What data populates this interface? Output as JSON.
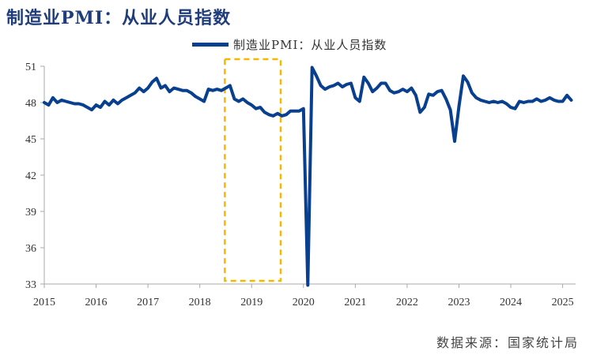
{
  "title": "制造业PMI：从业人员指数",
  "source": "数据来源：国家统计局",
  "colors": {
    "line": "#083f8f",
    "highlight": "#f2b900",
    "axis": "#a8a8a8"
  },
  "chart_data": {
    "type": "line",
    "title": "制造业PMI：从业人员指数",
    "x_axis": {
      "type": "date",
      "range": [
        "2015-01",
        "2025-03"
      ],
      "ticks": [
        "2015",
        "2016",
        "2017",
        "2018",
        "2019",
        "2020",
        "2021",
        "2022",
        "2023",
        "2024",
        "2025"
      ]
    },
    "y_axis": {
      "ylim": [
        33,
        51
      ],
      "ticks": [
        33,
        36,
        39,
        42,
        45,
        48,
        51
      ]
    },
    "grid": false,
    "legend_position": "top-center",
    "highlight_range": [
      "2018-09",
      "2019-07"
    ],
    "series": [
      {
        "name": "制造业PMI：从业人员指数",
        "points": [
          [
            "2015-01",
            48.0
          ],
          [
            "2015-02",
            47.8
          ],
          [
            "2015-03",
            48.4
          ],
          [
            "2015-04",
            48.0
          ],
          [
            "2015-05",
            48.2
          ],
          [
            "2015-06",
            48.1
          ],
          [
            "2015-07",
            48.0
          ],
          [
            "2015-08",
            47.9
          ],
          [
            "2015-09",
            47.9
          ],
          [
            "2015-10",
            47.8
          ],
          [
            "2015-11",
            47.6
          ],
          [
            "2015-12",
            47.4
          ],
          [
            "2016-01",
            47.8
          ],
          [
            "2016-02",
            47.6
          ],
          [
            "2016-03",
            48.1
          ],
          [
            "2016-04",
            47.8
          ],
          [
            "2016-05",
            48.2
          ],
          [
            "2016-06",
            47.9
          ],
          [
            "2016-07",
            48.2
          ],
          [
            "2016-08",
            48.4
          ],
          [
            "2016-09",
            48.6
          ],
          [
            "2016-10",
            48.8
          ],
          [
            "2016-11",
            49.2
          ],
          [
            "2016-12",
            48.9
          ],
          [
            "2017-01",
            49.2
          ],
          [
            "2017-02",
            49.7
          ],
          [
            "2017-03",
            50.0
          ],
          [
            "2017-04",
            49.2
          ],
          [
            "2017-05",
            49.4
          ],
          [
            "2017-06",
            48.9
          ],
          [
            "2017-07",
            49.2
          ],
          [
            "2017-08",
            49.1
          ],
          [
            "2017-09",
            49.0
          ],
          [
            "2017-10",
            49.0
          ],
          [
            "2017-11",
            48.8
          ],
          [
            "2017-12",
            48.5
          ],
          [
            "2018-01",
            48.3
          ],
          [
            "2018-02",
            48.1
          ],
          [
            "2018-03",
            49.1
          ],
          [
            "2018-04",
            49.0
          ],
          [
            "2018-05",
            49.1
          ],
          [
            "2018-06",
            49.0
          ],
          [
            "2018-07",
            49.2
          ],
          [
            "2018-08",
            49.4
          ],
          [
            "2018-09",
            48.3
          ],
          [
            "2018-10",
            48.1
          ],
          [
            "2018-11",
            48.3
          ],
          [
            "2018-12",
            48.0
          ],
          [
            "2019-01",
            47.8
          ],
          [
            "2019-02",
            47.5
          ],
          [
            "2019-03",
            47.6
          ],
          [
            "2019-04",
            47.2
          ],
          [
            "2019-05",
            47.0
          ],
          [
            "2019-06",
            46.9
          ],
          [
            "2019-07",
            47.1
          ],
          [
            "2019-08",
            46.9
          ],
          [
            "2019-09",
            47.0
          ],
          [
            "2019-10",
            47.3
          ],
          [
            "2019-11",
            47.3
          ],
          [
            "2019-12",
            47.3
          ],
          [
            "2020-01",
            47.5
          ],
          [
            "2020-02",
            32.9
          ],
          [
            "2020-03",
            50.9
          ],
          [
            "2020-04",
            50.2
          ],
          [
            "2020-05",
            49.4
          ],
          [
            "2020-06",
            49.1
          ],
          [
            "2020-07",
            49.3
          ],
          [
            "2020-08",
            49.4
          ],
          [
            "2020-09",
            49.6
          ],
          [
            "2020-10",
            49.3
          ],
          [
            "2020-11",
            49.5
          ],
          [
            "2020-12",
            49.6
          ],
          [
            "2021-01",
            48.4
          ],
          [
            "2021-02",
            48.1
          ],
          [
            "2021-03",
            50.1
          ],
          [
            "2021-04",
            49.6
          ],
          [
            "2021-05",
            48.9
          ],
          [
            "2021-06",
            49.2
          ],
          [
            "2021-07",
            49.6
          ],
          [
            "2021-08",
            49.6
          ],
          [
            "2021-09",
            49.0
          ],
          [
            "2021-10",
            48.8
          ],
          [
            "2021-11",
            48.9
          ],
          [
            "2021-12",
            49.1
          ],
          [
            "2022-01",
            48.9
          ],
          [
            "2022-02",
            49.2
          ],
          [
            "2022-03",
            48.6
          ],
          [
            "2022-04",
            47.2
          ],
          [
            "2022-05",
            47.6
          ],
          [
            "2022-06",
            48.7
          ],
          [
            "2022-07",
            48.6
          ],
          [
            "2022-08",
            48.9
          ],
          [
            "2022-09",
            49.0
          ],
          [
            "2022-10",
            48.3
          ],
          [
            "2022-11",
            47.4
          ],
          [
            "2022-12",
            44.8
          ],
          [
            "2023-01",
            47.7
          ],
          [
            "2023-02",
            50.2
          ],
          [
            "2023-03",
            49.7
          ],
          [
            "2023-04",
            48.8
          ],
          [
            "2023-05",
            48.4
          ],
          [
            "2023-06",
            48.2
          ],
          [
            "2023-07",
            48.1
          ],
          [
            "2023-08",
            48.0
          ],
          [
            "2023-09",
            48.1
          ],
          [
            "2023-10",
            48.0
          ],
          [
            "2023-11",
            48.1
          ],
          [
            "2023-12",
            47.9
          ],
          [
            "2024-01",
            47.6
          ],
          [
            "2024-02",
            47.5
          ],
          [
            "2024-03",
            48.1
          ],
          [
            "2024-04",
            48.0
          ],
          [
            "2024-05",
            48.1
          ],
          [
            "2024-06",
            48.1
          ],
          [
            "2024-07",
            48.3
          ],
          [
            "2024-08",
            48.1
          ],
          [
            "2024-09",
            48.2
          ],
          [
            "2024-10",
            48.4
          ],
          [
            "2024-11",
            48.2
          ],
          [
            "2024-12",
            48.1
          ],
          [
            "2025-01",
            48.1
          ],
          [
            "2025-02",
            48.6
          ],
          [
            "2025-03",
            48.2
          ]
        ]
      }
    ]
  }
}
